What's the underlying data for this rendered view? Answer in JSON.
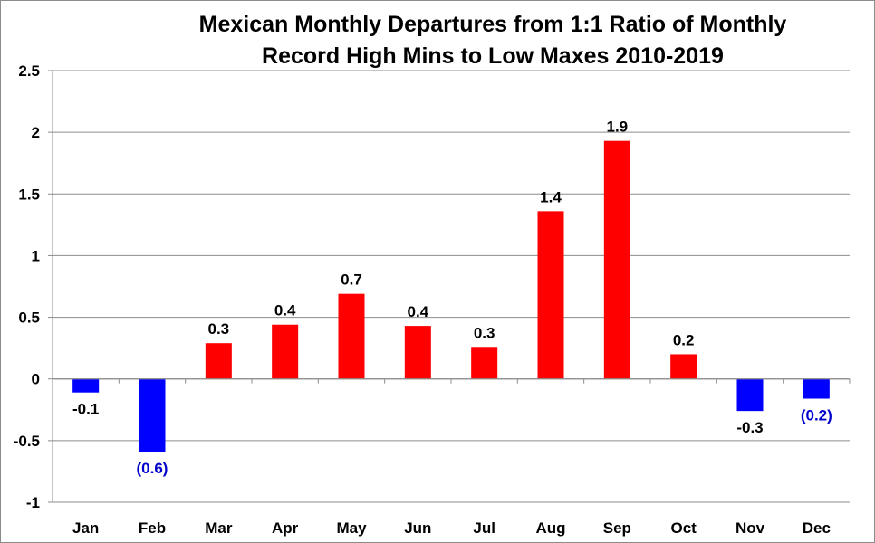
{
  "chart_data": {
    "type": "bar",
    "title_lines": [
      "Mexican Monthly Departures from 1:1 Ratio of Monthly",
      "Record High Mins to Low Maxes 2010-2019"
    ],
    "xlabel": "",
    "ylabel": "",
    "categories": [
      "Jan",
      "Feb",
      "Mar",
      "Apr",
      "May",
      "Jun",
      "Jul",
      "Aug",
      "Sep",
      "Oct",
      "Nov",
      "Dec"
    ],
    "values": [
      -0.11,
      -0.59,
      0.29,
      0.44,
      0.69,
      0.43,
      0.26,
      1.36,
      1.93,
      0.2,
      -0.26,
      -0.16
    ],
    "data_labels": [
      "-0.1",
      "(0.6)",
      "0.3",
      "0.4",
      "0.7",
      "0.4",
      "0.3",
      "1.4",
      "1.9",
      "0.2",
      "-0.3",
      "(0.2)"
    ],
    "ylim": [
      -1,
      2.5
    ],
    "yticks": [
      "-1",
      "-0.5",
      "0",
      "0.5",
      "1",
      "1.5",
      "2",
      "2.5"
    ],
    "ytick_values": [
      -1,
      -0.5,
      0,
      0.5,
      1,
      1.5,
      2,
      2.5
    ],
    "grid": true,
    "legend": "none",
    "colors": {
      "positive": "#ff0000",
      "negative": "#0000ff",
      "grid": "#8c8c8c",
      "label_default": "#000000",
      "label_parenthesized": "#0000cc"
    }
  }
}
